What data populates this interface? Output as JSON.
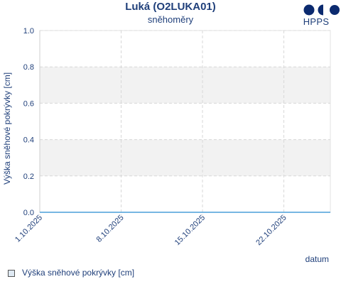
{
  "header": {
    "title": "Luká (O2LUKA01)",
    "subtitle": "sněhoměry"
  },
  "logo": {
    "text": "HPPS",
    "icon": "hpps-logo-icon",
    "color": "#0b2a6f"
  },
  "legend": {
    "label": "Výška sněhové pokrývky [cm]"
  },
  "colors": {
    "text": "#1f3f7a",
    "grid": "#d8d8d8",
    "band": "#f2f2f2",
    "series": "#4a9fd8"
  },
  "chart_data": {
    "type": "line",
    "title": "Luká (O2LUKA01)",
    "subtitle": "sněhoměry",
    "xlabel": "datum",
    "ylabel": "Výška sněhové pokrývky [cm]",
    "xlim": [
      "2025-10-01",
      "2025-10-26"
    ],
    "ylim": [
      0,
      1
    ],
    "x_ticks": [
      "2025-10-01",
      "2025-10-08",
      "2025-10-15",
      "2025-10-22"
    ],
    "x_tick_labels": [
      "1.10.2025",
      "8.10.2025",
      "15.10.2025",
      "22.10.2025"
    ],
    "y_ticks": [
      0,
      0.2,
      0.4,
      0.6,
      0.8,
      1
    ],
    "y_tick_labels": [
      "0.0",
      "0.2",
      "0.4",
      "0.6",
      "0.8",
      "1.0"
    ],
    "grid": true,
    "legend_position": "bottom-left",
    "series": [
      {
        "name": "Výška sněhové pokrývky [cm]",
        "x": [
          "2025-10-01",
          "2025-10-26"
        ],
        "y": [
          0,
          0
        ]
      }
    ]
  }
}
